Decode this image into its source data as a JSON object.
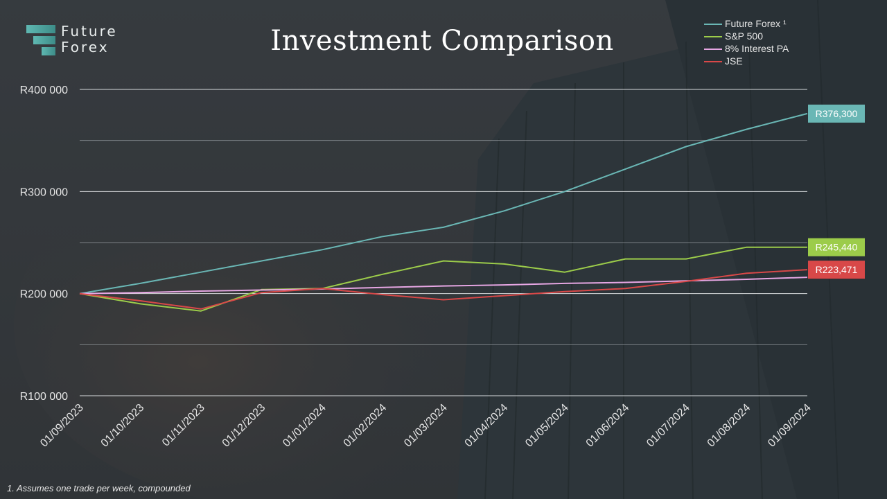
{
  "brand": {
    "line1": "Future",
    "line2": "Forex"
  },
  "footnote": "1. Assumes one trade per week, compounded",
  "chart_data": {
    "type": "line",
    "title": "Investment Comparison",
    "xlabel": "",
    "ylabel": "",
    "ylim": [
      100000,
      400000
    ],
    "yticks": [
      {
        "value": 100000,
        "label": "R100 000"
      },
      {
        "value": 200000,
        "label": "R200 000"
      },
      {
        "value": 300000,
        "label": "R300 000"
      },
      {
        "value": 400000,
        "label": "R400 000"
      }
    ],
    "minor_gridlines": [
      150000,
      250000,
      350000
    ],
    "grid": true,
    "legend_position": "top-right",
    "x": [
      "01/09/2023",
      "01/10/2023",
      "01/11/2023",
      "01/12/2023",
      "01/01/2024",
      "01/02/2024",
      "01/03/2024",
      "01/04/2024",
      "01/05/2024",
      "01/06/2024",
      "01/07/2024",
      "01/08/2024",
      "01/09/2024"
    ],
    "series": [
      {
        "name": "Future Forex ¹",
        "color": "#6ab7b5",
        "values": [
          200000,
          210000,
          221000,
          232000,
          243000,
          256000,
          265000,
          281000,
          300000,
          322000,
          344000,
          361000,
          376300
        ],
        "end_label": "R376,300"
      },
      {
        "name": "S&P 500",
        "color": "#9ccc4a",
        "values": [
          200000,
          190000,
          183000,
          204000,
          205000,
          219000,
          232000,
          229000,
          221000,
          234000,
          234000,
          245440,
          245440
        ],
        "end_label": "R245,440"
      },
      {
        "name": "8% Interest PA",
        "color": "#e6a6e3",
        "values": [
          200000,
          201000,
          202500,
          203500,
          204500,
          206000,
          207500,
          208500,
          210000,
          211000,
          212500,
          214000,
          216000
        ],
        "end_label": ""
      },
      {
        "name": "JSE",
        "color": "#d84848",
        "values": [
          200000,
          193000,
          185000,
          201000,
          205000,
          199000,
          194000,
          198000,
          202000,
          205000,
          212000,
          220000,
          223471
        ],
        "end_label": "R223,471"
      }
    ]
  }
}
